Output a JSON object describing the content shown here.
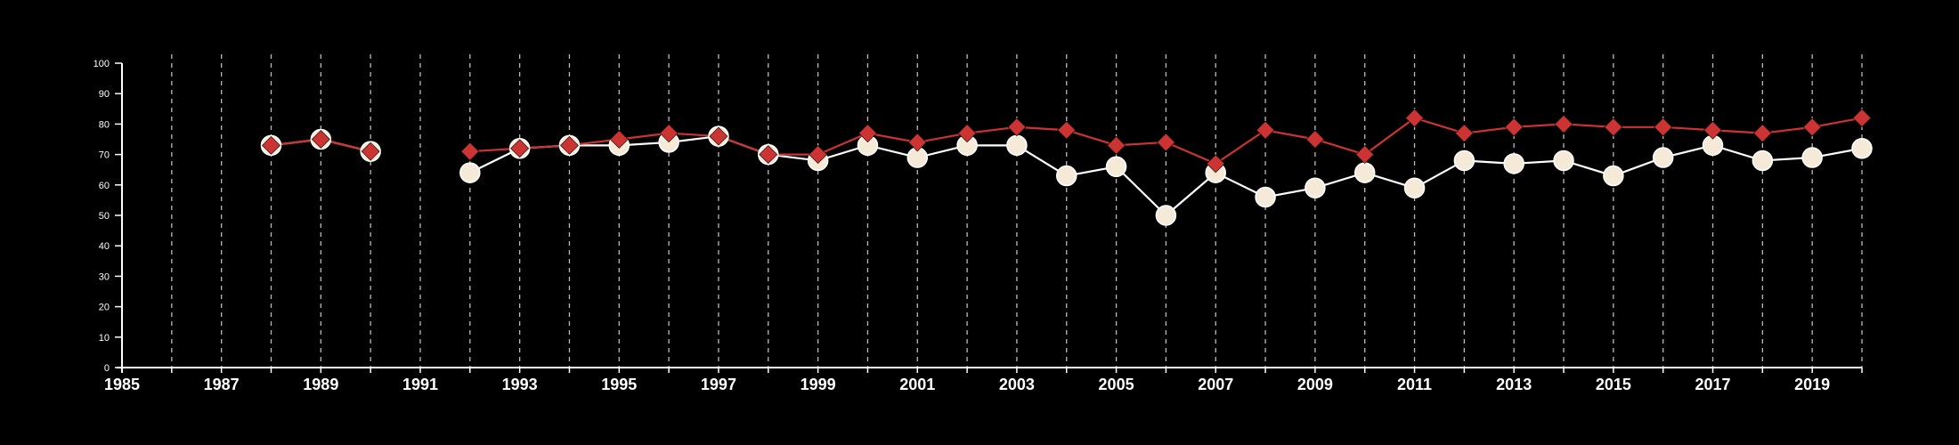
{
  "chart_data": {
    "type": "line",
    "title": "",
    "xlabel": "",
    "ylabel": "",
    "xlim": [
      1985,
      2020
    ],
    "ylim": [
      0,
      100
    ],
    "x_ticks": [
      {
        "value": 1985,
        "label": "1985"
      },
      {
        "value": 1987,
        "label": "1987"
      },
      {
        "value": 1989,
        "label": "1989"
      },
      {
        "value": 1991,
        "label": "1991"
      },
      {
        "value": 1993,
        "label": "1993"
      },
      {
        "value": 1995,
        "label": "1995"
      },
      {
        "value": 1997,
        "label": "1997"
      },
      {
        "value": 1999,
        "label": "1999"
      },
      {
        "value": 2001,
        "label": "2001"
      },
      {
        "value": 2003,
        "label": "2003"
      },
      {
        "value": 2005,
        "label": "2005"
      },
      {
        "value": 2007,
        "label": "2007"
      },
      {
        "value": 2009,
        "label": "2009"
      },
      {
        "value": 2011,
        "label": "2011"
      },
      {
        "value": 2013,
        "label": "2013"
      },
      {
        "value": 2015,
        "label": "2015"
      },
      {
        "value": 2017,
        "label": "2017"
      },
      {
        "value": 2019,
        "label": "2019"
      }
    ],
    "y_ticks": [
      {
        "value": 0,
        "label": "0"
      },
      {
        "value": 10,
        "label": "10"
      },
      {
        "value": 20,
        "label": "20"
      },
      {
        "value": 30,
        "label": "30"
      },
      {
        "value": 40,
        "label": "40"
      },
      {
        "value": 50,
        "label": "50"
      },
      {
        "value": 60,
        "label": "60"
      },
      {
        "value": 70,
        "label": "70"
      },
      {
        "value": 80,
        "label": "80"
      },
      {
        "value": 90,
        "label": "90"
      },
      {
        "value": 100,
        "label": "100"
      }
    ],
    "grid": {
      "vertical": true,
      "horizontal": false,
      "style": "dashed",
      "every": 1
    },
    "colors": {
      "background": "#000000",
      "axis": "#ffffff",
      "grid": "#bbbbbb",
      "series_a": "#f5ead8",
      "series_b": "#cc3333"
    },
    "series": [
      {
        "marker": "circle",
        "color": "#f5ead8",
        "points": [
          [
            1988,
            73
          ],
          [
            1989,
            75
          ],
          [
            1990,
            71
          ],
          [
            1992,
            64
          ],
          [
            1993,
            72
          ],
          [
            1994,
            73
          ],
          [
            1995,
            73
          ],
          [
            1996,
            74
          ],
          [
            1997,
            76
          ],
          [
            1998,
            70
          ],
          [
            1999,
            68
          ],
          [
            2000,
            73
          ],
          [
            2001,
            69
          ],
          [
            2002,
            73
          ],
          [
            2003,
            73
          ],
          [
            2004,
            63
          ],
          [
            2005,
            66
          ],
          [
            2006,
            50
          ],
          [
            2007,
            64
          ],
          [
            2008,
            56
          ],
          [
            2009,
            59
          ],
          [
            2010,
            64
          ],
          [
            2011,
            59
          ],
          [
            2012,
            68
          ],
          [
            2013,
            67
          ],
          [
            2014,
            68
          ],
          [
            2015,
            63
          ],
          [
            2016,
            69
          ],
          [
            2017,
            73
          ],
          [
            2018,
            68
          ],
          [
            2019,
            69
          ],
          [
            2020,
            72
          ]
        ]
      },
      {
        "marker": "diamond",
        "color": "#cc3333",
        "points": [
          [
            1988,
            73
          ],
          [
            1989,
            75
          ],
          [
            1990,
            71
          ],
          [
            1992,
            71
          ],
          [
            1993,
            72
          ],
          [
            1994,
            73
          ],
          [
            1995,
            75
          ],
          [
            1996,
            77
          ],
          [
            1997,
            76
          ],
          [
            1998,
            70
          ],
          [
            1999,
            70
          ],
          [
            2000,
            77
          ],
          [
            2001,
            74
          ],
          [
            2002,
            77
          ],
          [
            2003,
            79
          ],
          [
            2004,
            78
          ],
          [
            2005,
            73
          ],
          [
            2006,
            74
          ],
          [
            2007,
            67
          ],
          [
            2008,
            78
          ],
          [
            2009,
            75
          ],
          [
            2010,
            70
          ],
          [
            2011,
            82
          ],
          [
            2012,
            77
          ],
          [
            2013,
            79
          ],
          [
            2014,
            80
          ],
          [
            2015,
            79
          ],
          [
            2016,
            79
          ],
          [
            2017,
            78
          ],
          [
            2018,
            77
          ],
          [
            2019,
            79
          ],
          [
            2020,
            82
          ]
        ]
      }
    ]
  }
}
